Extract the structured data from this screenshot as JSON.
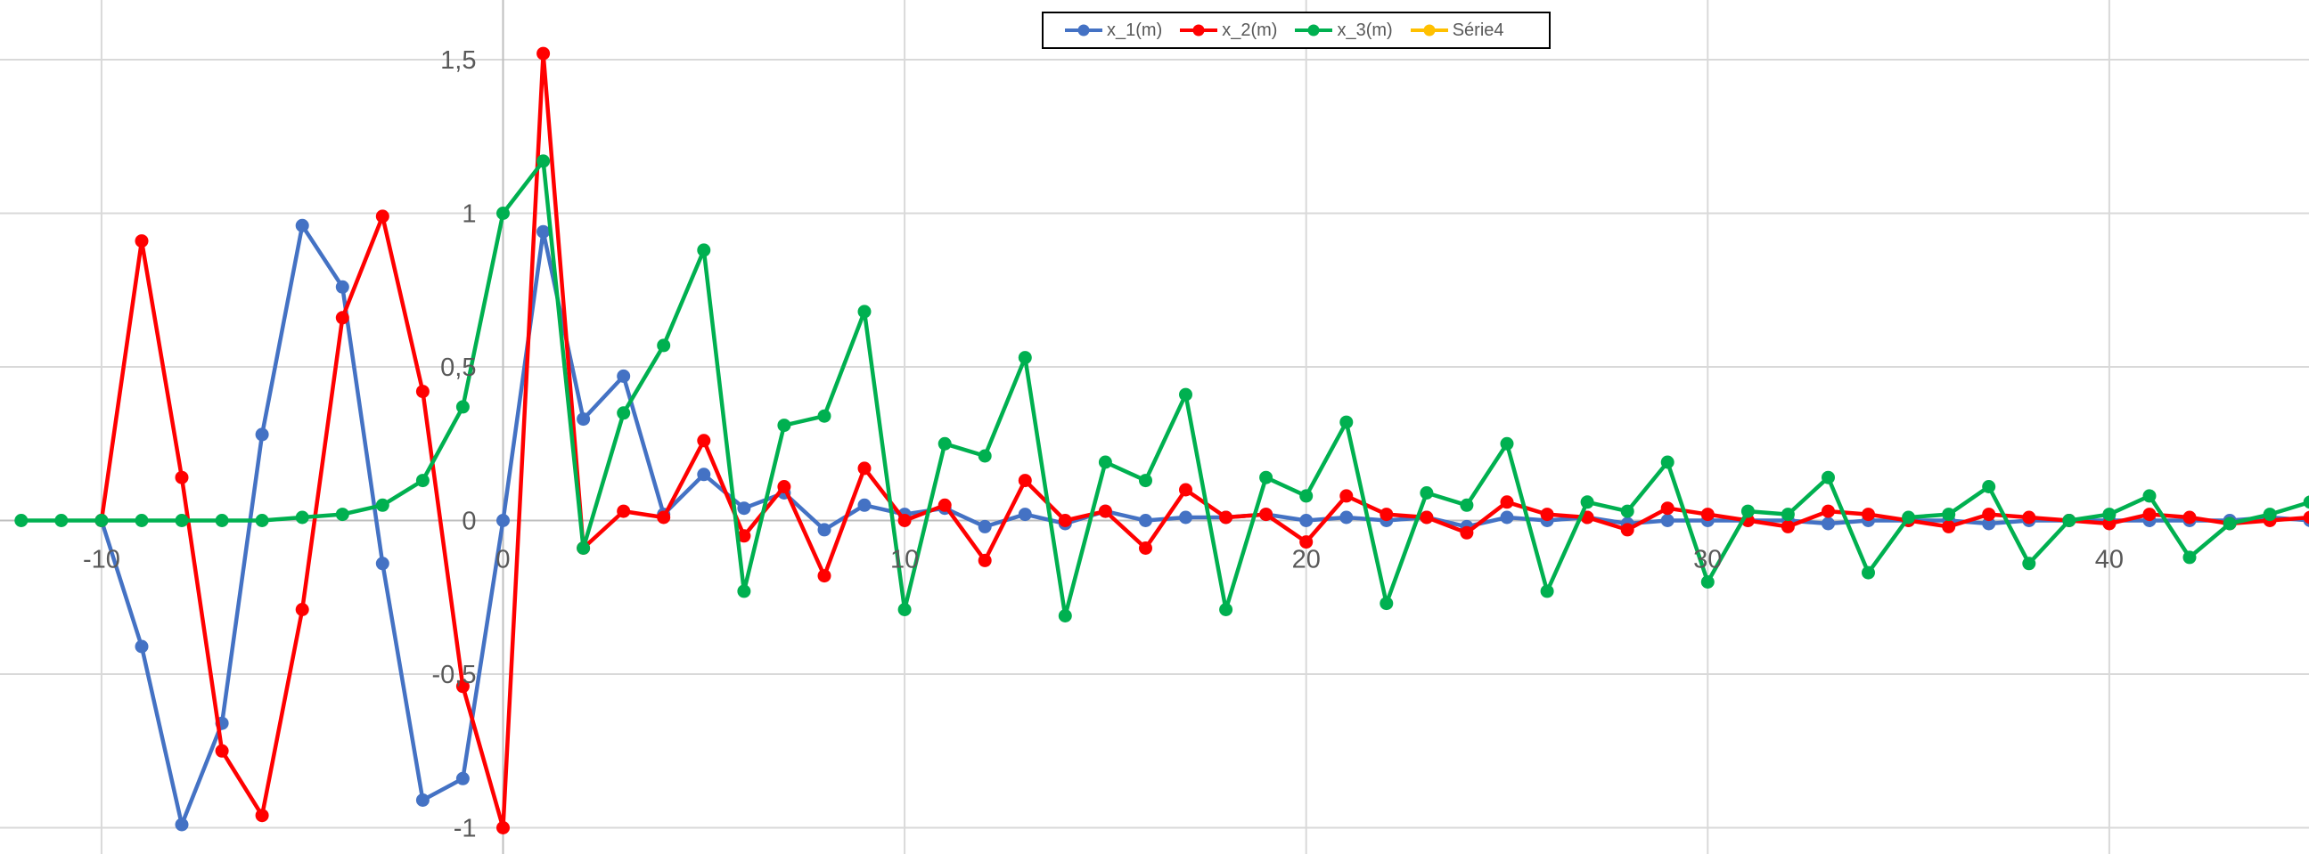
{
  "chart_data": {
    "type": "line",
    "title": "",
    "xlabel": "",
    "ylabel": "",
    "xlim": [
      -12.5,
      45
    ],
    "ylim": [
      -1.08,
      1.65
    ],
    "grid": true,
    "legend_position": "top-center",
    "x_ticks": [
      -10,
      0,
      10,
      20,
      30,
      40
    ],
    "x_tick_labels": [
      "-10",
      "0",
      "10",
      "20",
      "30",
      "40"
    ],
    "y_ticks": [
      -1,
      -0.5,
      0,
      0.5,
      1,
      1.5
    ],
    "y_tick_labels": [
      "-1",
      "-0,5",
      "0",
      "0,5",
      "1",
      "1,5"
    ],
    "series": [
      {
        "name": "x_1(m)",
        "color": "#4472C4",
        "points": [
          [
            -10,
            0
          ],
          [
            -9,
            -0.41
          ],
          [
            -8,
            -0.99
          ],
          [
            -7,
            -0.66
          ],
          [
            -6,
            0.28
          ],
          [
            -5,
            0.96
          ],
          [
            -4,
            0.76
          ],
          [
            -3,
            -0.14
          ],
          [
            -2,
            -0.91
          ],
          [
            -1,
            -0.84
          ],
          [
            0,
            0
          ],
          [
            1,
            0.94
          ],
          [
            2,
            0.33
          ],
          [
            3,
            0.47
          ],
          [
            4,
            0.02
          ],
          [
            5,
            0.15
          ],
          [
            6,
            0.04
          ],
          [
            7,
            0.09
          ],
          [
            8,
            -0.03
          ],
          [
            9,
            0.05
          ],
          [
            10,
            0.02
          ],
          [
            11,
            0.04
          ],
          [
            12,
            -0.02
          ],
          [
            13,
            0.02
          ],
          [
            14,
            -0.01
          ],
          [
            15,
            0.03
          ],
          [
            16,
            0.0
          ],
          [
            17,
            0.01
          ],
          [
            18,
            0.01
          ],
          [
            19,
            0.02
          ],
          [
            20,
            0.0
          ],
          [
            21,
            0.01
          ],
          [
            22,
            0.0
          ],
          [
            23,
            0.01
          ],
          [
            24,
            -0.02
          ],
          [
            25,
            0.01
          ],
          [
            26,
            0.0
          ],
          [
            27,
            0.01
          ],
          [
            28,
            -0.01
          ],
          [
            29,
            0.0
          ],
          [
            30,
            0.0
          ],
          [
            31,
            0.0
          ],
          [
            32,
            0.0
          ],
          [
            33,
            -0.01
          ],
          [
            34,
            0.0
          ],
          [
            35,
            0.0
          ],
          [
            36,
            0.0
          ],
          [
            37,
            -0.01
          ],
          [
            38,
            0.0
          ],
          [
            39,
            0.0
          ],
          [
            40,
            0.0
          ],
          [
            41,
            0.0
          ],
          [
            42,
            0.0
          ],
          [
            43,
            0.0
          ],
          [
            44,
            0.01
          ],
          [
            45,
            0.0
          ]
        ]
      },
      {
        "name": "x_2(m)",
        "color": "#FF0000",
        "points": [
          [
            -10,
            0
          ],
          [
            -9,
            0.91
          ],
          [
            -8,
            0.14
          ],
          [
            -7,
            -0.75
          ],
          [
            -6,
            -0.96
          ],
          [
            -5,
            -0.29
          ],
          [
            -4,
            0.66
          ],
          [
            -3,
            0.99
          ],
          [
            -2,
            0.42
          ],
          [
            -1,
            -0.54
          ],
          [
            0,
            -1.0
          ],
          [
            1,
            1.52
          ],
          [
            2,
            -0.09
          ],
          [
            3,
            0.03
          ],
          [
            4,
            0.01
          ],
          [
            5,
            0.26
          ],
          [
            6,
            -0.05
          ],
          [
            7,
            0.11
          ],
          [
            8,
            -0.18
          ],
          [
            9,
            0.17
          ],
          [
            10,
            0.0
          ],
          [
            11,
            0.05
          ],
          [
            12,
            -0.13
          ],
          [
            13,
            0.13
          ],
          [
            14,
            0.0
          ],
          [
            15,
            0.03
          ],
          [
            16,
            -0.09
          ],
          [
            17,
            0.1
          ],
          [
            18,
            0.01
          ],
          [
            19,
            0.02
          ],
          [
            20,
            -0.07
          ],
          [
            21,
            0.08
          ],
          [
            22,
            0.02
          ],
          [
            23,
            0.01
          ],
          [
            24,
            -0.04
          ],
          [
            25,
            0.06
          ],
          [
            26,
            0.02
          ],
          [
            27,
            0.01
          ],
          [
            28,
            -0.03
          ],
          [
            29,
            0.04
          ],
          [
            30,
            0.02
          ],
          [
            31,
            0.0
          ],
          [
            32,
            -0.02
          ],
          [
            33,
            0.03
          ],
          [
            34,
            0.02
          ],
          [
            35,
            0.0
          ],
          [
            36,
            -0.02
          ],
          [
            37,
            0.02
          ],
          [
            38,
            0.01
          ],
          [
            39,
            0.0
          ],
          [
            40,
            -0.01
          ],
          [
            41,
            0.02
          ],
          [
            42,
            0.01
          ],
          [
            43,
            -0.01
          ],
          [
            44,
            0.0
          ],
          [
            45,
            0.01
          ]
        ]
      },
      {
        "name": "x_3(m)",
        "color": "#00B050",
        "points": [
          [
            -12,
            0
          ],
          [
            -11,
            0
          ],
          [
            -10,
            0
          ],
          [
            -9,
            0
          ],
          [
            -8,
            0
          ],
          [
            -7,
            0
          ],
          [
            -6,
            0
          ],
          [
            -5,
            0.01
          ],
          [
            -4,
            0.02
          ],
          [
            -3,
            0.05
          ],
          [
            -2,
            0.13
          ],
          [
            -1,
            0.37
          ],
          [
            0,
            1.0
          ],
          [
            1,
            1.17
          ],
          [
            2,
            -0.09
          ],
          [
            3,
            0.35
          ],
          [
            4,
            0.57
          ],
          [
            5,
            0.88
          ],
          [
            6,
            -0.23
          ],
          [
            7,
            0.31
          ],
          [
            8,
            0.34
          ],
          [
            9,
            0.68
          ],
          [
            10,
            -0.29
          ],
          [
            11,
            0.25
          ],
          [
            12,
            0.21
          ],
          [
            13,
            0.53
          ],
          [
            14,
            -0.31
          ],
          [
            15,
            0.19
          ],
          [
            16,
            0.13
          ],
          [
            17,
            0.41
          ],
          [
            18,
            -0.29
          ],
          [
            19,
            0.14
          ],
          [
            20,
            0.08
          ],
          [
            21,
            0.32
          ],
          [
            22,
            -0.27
          ],
          [
            23,
            0.09
          ],
          [
            24,
            0.05
          ],
          [
            25,
            0.25
          ],
          [
            26,
            -0.23
          ],
          [
            27,
            0.06
          ],
          [
            28,
            0.03
          ],
          [
            29,
            0.19
          ],
          [
            30,
            -0.2
          ],
          [
            31,
            0.03
          ],
          [
            32,
            0.02
          ],
          [
            33,
            0.14
          ],
          [
            34,
            -0.17
          ],
          [
            35,
            0.01
          ],
          [
            36,
            0.02
          ],
          [
            37,
            0.11
          ],
          [
            38,
            -0.14
          ],
          [
            39,
            0.0
          ],
          [
            40,
            0.02
          ],
          [
            41,
            0.08
          ],
          [
            42,
            -0.12
          ],
          [
            43,
            -0.01
          ],
          [
            44,
            0.02
          ],
          [
            45,
            0.06
          ]
        ]
      },
      {
        "name": "Série4",
        "color": "#FFC000",
        "points": []
      }
    ]
  }
}
